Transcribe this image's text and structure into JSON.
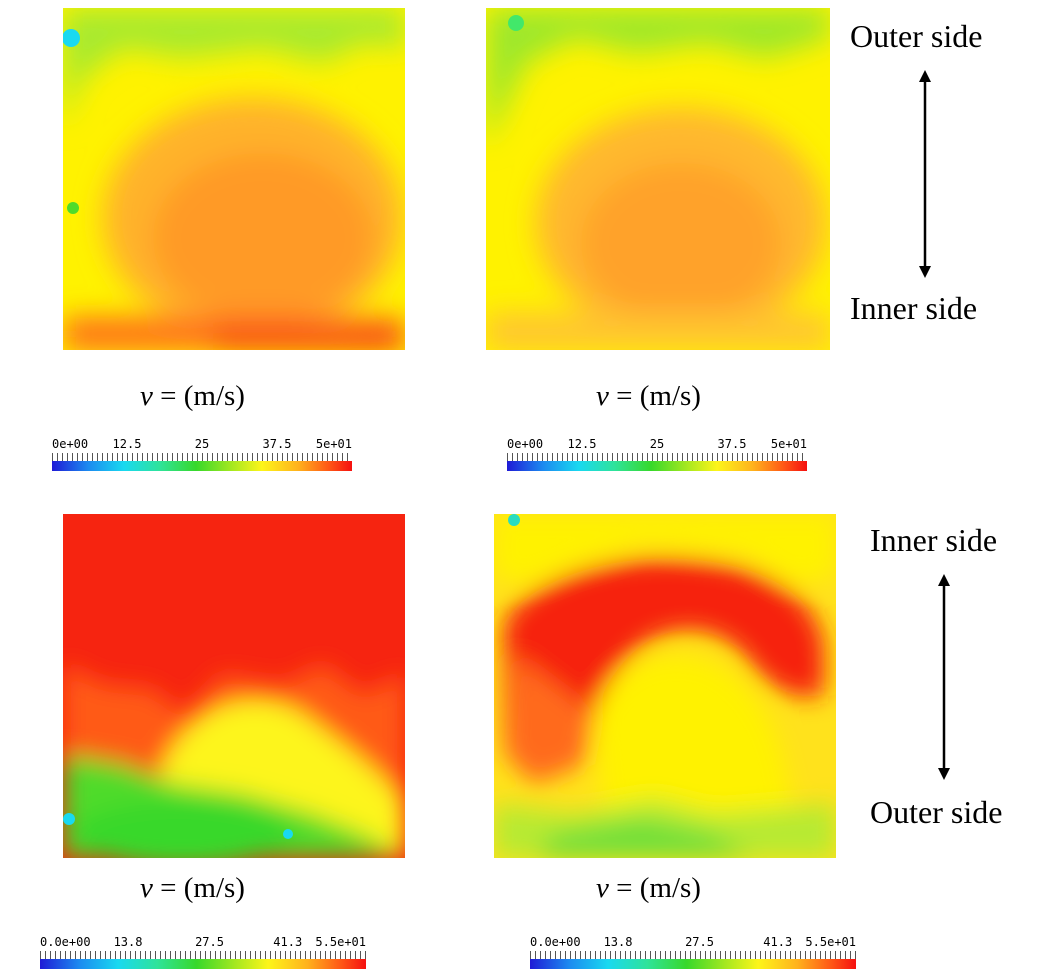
{
  "panels": [
    {
      "id": "tl",
      "colors": {
        "base": "#fff200",
        "core": "#ffa62a",
        "rim": "#ff2a14",
        "edge": "#7ee83a",
        "cool": "#19d9f0"
      }
    },
    {
      "id": "tr",
      "colors": {
        "base": "#fff200",
        "core": "#ffad2e",
        "rim": "#ff7a20",
        "edge": "#9ee82c",
        "cool": "#42e86a"
      }
    },
    {
      "id": "bl",
      "colors": {
        "base": "#f62410",
        "core": "#ff5a18",
        "rim": "#fdf51a",
        "edge": "#4fdb2a",
        "cool": "#19d9f0"
      }
    },
    {
      "id": "br",
      "colors": {
        "base": "#ffb81f",
        "core": "#f62410",
        "rim": "#fff200",
        "edge": "#8fe02c",
        "cool": "#29dcc0"
      }
    }
  ],
  "velocity_labels": {
    "symbol": "v",
    "rest": " = (m/s)"
  },
  "colorbars": {
    "top": {
      "ticks": [
        "0e+00",
        "12.5",
        "25",
        "37.5",
        "5e+01"
      ]
    },
    "bottom": {
      "ticks": [
        "0.0e+00",
        "13.8",
        "27.5",
        "41.3",
        "5.5e+01"
      ]
    }
  },
  "orientation": {
    "top_upper": "Outer side",
    "top_lower": "Inner side",
    "bottom_upper": "Inner side",
    "bottom_lower": "Outer side"
  }
}
